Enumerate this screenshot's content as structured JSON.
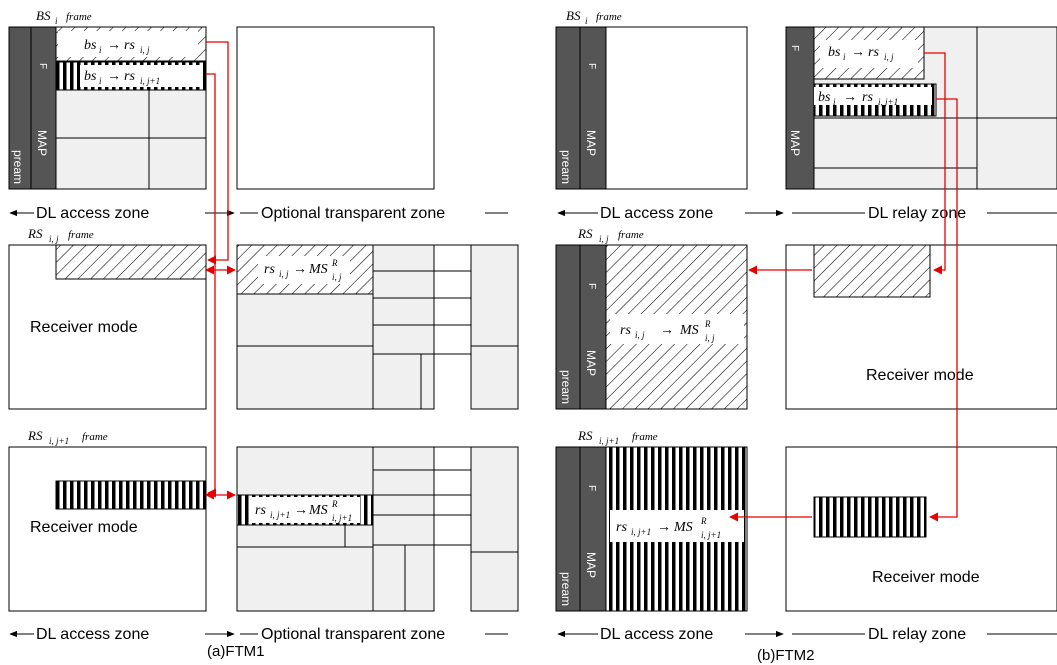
{
  "frame_word": "frame",
  "bs_frame": {
    "main": "BS",
    "sub": "i"
  },
  "rs_j_frame": {
    "main": "RS",
    "sub": "i, j"
  },
  "rs_j1_frame": {
    "main": "RS",
    "sub": "i, j+1"
  },
  "eq_bs_rs_j": {
    "lhs": "bs",
    "lhs_sub": "i",
    "rhs": "rs",
    "rhs_sub": "i, j"
  },
  "eq_bs_rs_j1": {
    "lhs": "bs",
    "lhs_sub": "i",
    "rhs": "rs",
    "rhs_sub": "i, j+1"
  },
  "eq_rs_ms_j": {
    "lhs": "rs",
    "lhs_sub": "i, j",
    "rhs": "MS",
    "rhs_sup": "R",
    "rhs_sub": "i, j"
  },
  "eq_rs_ms_j1": {
    "lhs": "rs",
    "lhs_sub": "i, j+1",
    "rhs": "MS",
    "rhs_sup": "R",
    "rhs_sub": "i, j+1"
  },
  "receiver_mode": "Receiver mode",
  "zones": {
    "dl_access": "DL access zone",
    "optional_transparent": "Optional transparent zone",
    "dl_relay": "DL relay zone"
  },
  "captions": {
    "ftm1": "(a)FTM1",
    "ftm2": "(b)FTM2"
  },
  "preamble_text": "pream",
  "map_text": "MAP",
  "fch_text": "F",
  "colors": {
    "arrow": "#e60000",
    "dark": "#555555",
    "fill": "#f0f0f0"
  }
}
